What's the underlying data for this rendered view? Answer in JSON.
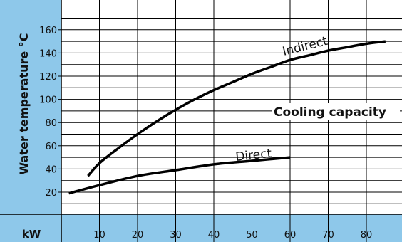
{
  "chart_data": {
    "type": "line",
    "ylabel": "Water temperature °C",
    "xlabel": "kW",
    "annotation": "Cooling capacity",
    "x_ticks": [
      10,
      20,
      30,
      40,
      50,
      60,
      70,
      80
    ],
    "y_ticks": [
      20,
      40,
      60,
      80,
      100,
      120,
      140,
      160
    ],
    "xlim": [
      0,
      88
    ],
    "ylim": [
      10,
      170
    ],
    "grid": true,
    "colors": {
      "axis_panel": "#8ec8ea",
      "grid": "#000000",
      "curve": "#000000"
    },
    "series": [
      {
        "name": "Indirect",
        "x": [
          7,
          10,
          15,
          20,
          25,
          30,
          35,
          40,
          45,
          50,
          55,
          60,
          65,
          70,
          75,
          80,
          85
        ],
        "y": [
          34,
          45,
          58,
          70,
          81,
          91,
          100,
          108,
          115,
          122,
          128,
          134,
          138,
          142,
          145,
          148,
          150
        ]
      },
      {
        "name": "Direct",
        "x": [
          2,
          10,
          20,
          30,
          40,
          50,
          60
        ],
        "y": [
          19,
          26,
          34,
          39,
          44,
          47,
          50
        ]
      }
    ]
  }
}
